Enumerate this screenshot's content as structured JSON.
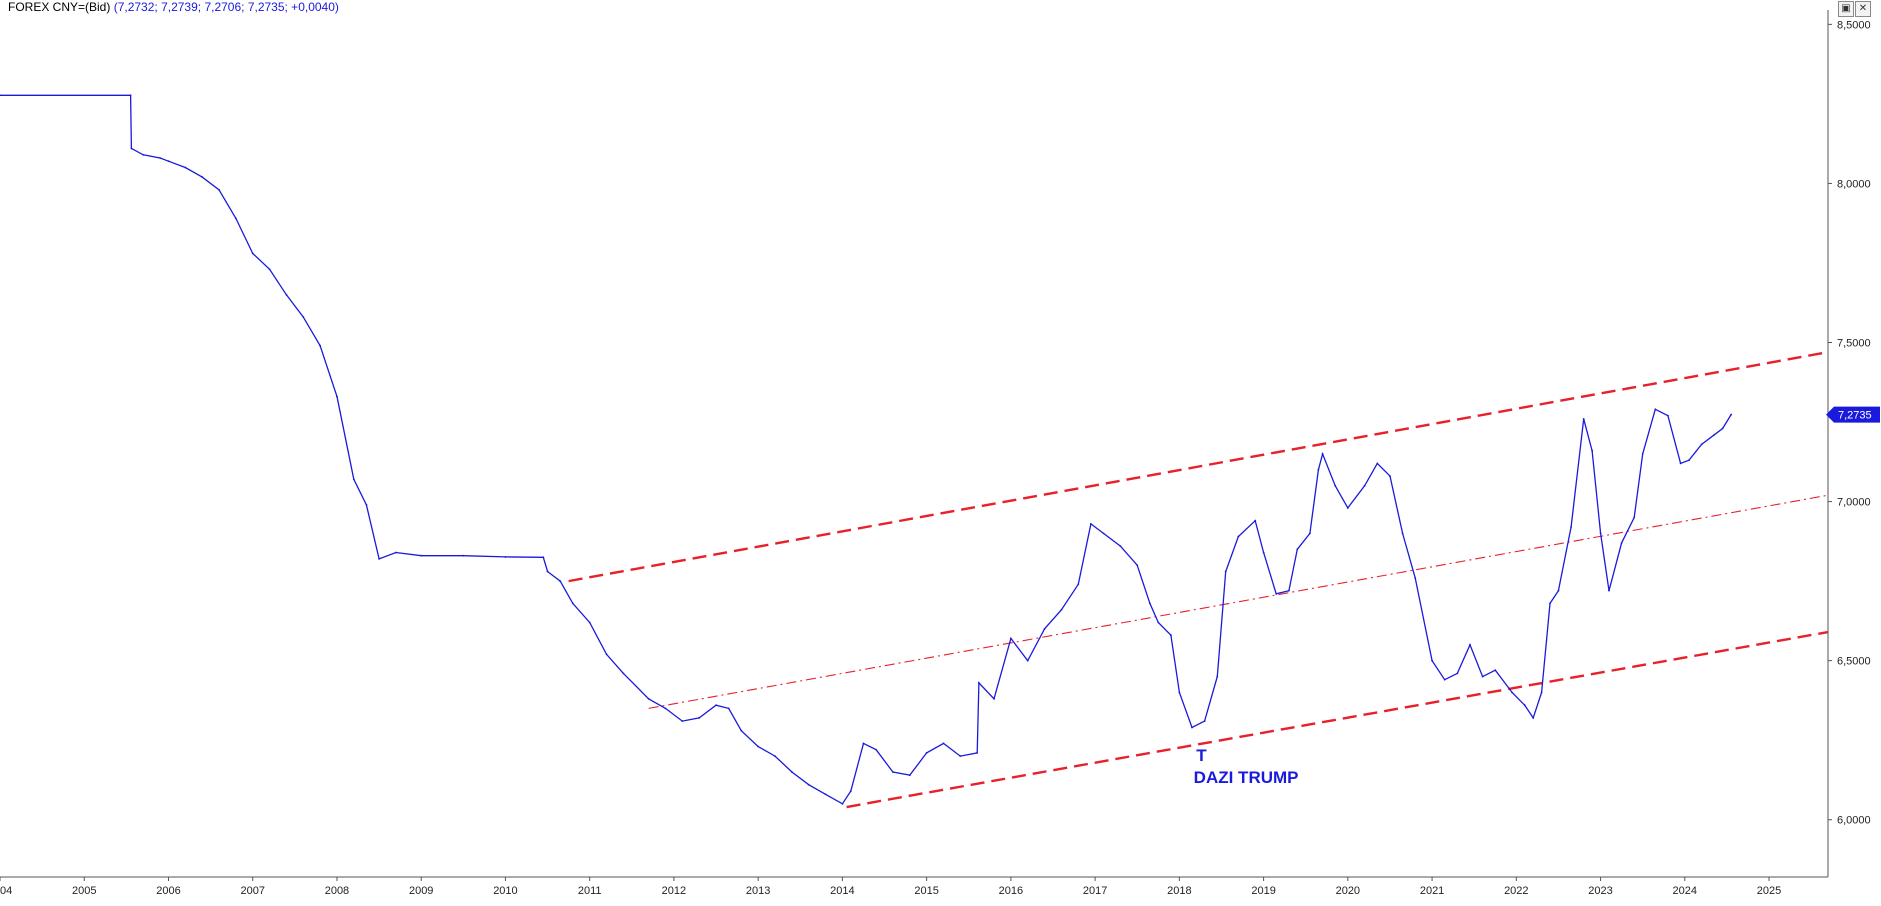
{
  "header": {
    "label": "FOREX CNY=(Bid)",
    "values": "(7,2732; 7,2739; 7,2706; 7,2735; +0,0040)"
  },
  "window_buttons": {
    "maximize_icon": "window-maximize-icon",
    "close_icon": "close-icon",
    "maximize_glyph": "▣",
    "close_glyph": "✕"
  },
  "chart_data": {
    "type": "line",
    "title": "FOREX CNY=(Bid)",
    "xlabel": "",
    "ylabel": "",
    "x_axis": {
      "range": [
        2004.0,
        2025.7
      ],
      "ticks": [
        "2004",
        "2005",
        "2006",
        "2007",
        "2008",
        "2009",
        "2010",
        "2011",
        "2012",
        "2013",
        "2014",
        "2015",
        "2016",
        "2017",
        "2018",
        "2019",
        "2020",
        "2021",
        "2022",
        "2023",
        "2024",
        "2025"
      ]
    },
    "y_axis": {
      "range": [
        5.82,
        8.52
      ],
      "ticks": [
        "6,0000",
        "6,5000",
        "7,0000",
        "7,5000",
        "8,0000",
        "8,5000"
      ],
      "tick_values": [
        6.0,
        6.5,
        7.0,
        7.5,
        8.0,
        8.5
      ],
      "position": "right"
    },
    "grid": false,
    "color_series": "#1a1adc",
    "color_trendline": "#e8202a",
    "last_price": {
      "label": "7,2735",
      "value": 7.2735,
      "color": "#1a1adc"
    },
    "series": [
      {
        "points": [
          [
            2004.0,
            8.277
          ],
          [
            2005.55,
            8.277
          ],
          [
            2005.56,
            8.11
          ],
          [
            2005.7,
            8.09
          ],
          [
            2005.9,
            8.08
          ],
          [
            2006.0,
            8.07
          ],
          [
            2006.2,
            8.05
          ],
          [
            2006.4,
            8.02
          ],
          [
            2006.6,
            7.98
          ],
          [
            2006.8,
            7.89
          ],
          [
            2007.0,
            7.78
          ],
          [
            2007.2,
            7.73
          ],
          [
            2007.4,
            7.65
          ],
          [
            2007.6,
            7.58
          ],
          [
            2007.8,
            7.49
          ],
          [
            2008.0,
            7.33
          ],
          [
            2008.2,
            7.07
          ],
          [
            2008.35,
            6.99
          ],
          [
            2008.5,
            6.82
          ],
          [
            2008.7,
            6.84
          ],
          [
            2009.0,
            6.83
          ],
          [
            2009.5,
            6.83
          ],
          [
            2010.0,
            6.826
          ],
          [
            2010.45,
            6.825
          ],
          [
            2010.5,
            6.78
          ],
          [
            2010.65,
            6.75
          ],
          [
            2010.8,
            6.68
          ],
          [
            2011.0,
            6.62
          ],
          [
            2011.2,
            6.52
          ],
          [
            2011.4,
            6.46
          ],
          [
            2011.7,
            6.38
          ],
          [
            2011.9,
            6.35
          ],
          [
            2012.1,
            6.31
          ],
          [
            2012.3,
            6.32
          ],
          [
            2012.5,
            6.36
          ],
          [
            2012.65,
            6.35
          ],
          [
            2012.8,
            6.28
          ],
          [
            2013.0,
            6.23
          ],
          [
            2013.2,
            6.2
          ],
          [
            2013.4,
            6.15
          ],
          [
            2013.6,
            6.11
          ],
          [
            2013.8,
            6.08
          ],
          [
            2014.0,
            6.05
          ],
          [
            2014.1,
            6.09
          ],
          [
            2014.25,
            6.24
          ],
          [
            2014.4,
            6.22
          ],
          [
            2014.6,
            6.15
          ],
          [
            2014.8,
            6.14
          ],
          [
            2015.0,
            6.21
          ],
          [
            2015.2,
            6.24
          ],
          [
            2015.4,
            6.2
          ],
          [
            2015.6,
            6.21
          ],
          [
            2015.62,
            6.43
          ],
          [
            2015.8,
            6.38
          ],
          [
            2016.0,
            6.57
          ],
          [
            2016.2,
            6.5
          ],
          [
            2016.4,
            6.6
          ],
          [
            2016.6,
            6.66
          ],
          [
            2016.8,
            6.74
          ],
          [
            2016.95,
            6.93
          ],
          [
            2017.1,
            6.9
          ],
          [
            2017.3,
            6.86
          ],
          [
            2017.5,
            6.8
          ],
          [
            2017.65,
            6.68
          ],
          [
            2017.75,
            6.62
          ],
          [
            2017.9,
            6.58
          ],
          [
            2018.0,
            6.4
          ],
          [
            2018.15,
            6.29
          ],
          [
            2018.3,
            6.31
          ],
          [
            2018.45,
            6.45
          ],
          [
            2018.55,
            6.78
          ],
          [
            2018.7,
            6.89
          ],
          [
            2018.9,
            6.94
          ],
          [
            2019.0,
            6.84
          ],
          [
            2019.15,
            6.71
          ],
          [
            2019.3,
            6.72
          ],
          [
            2019.4,
            6.85
          ],
          [
            2019.55,
            6.9
          ],
          [
            2019.65,
            7.1
          ],
          [
            2019.7,
            7.15
          ],
          [
            2019.85,
            7.05
          ],
          [
            2020.0,
            6.98
          ],
          [
            2020.2,
            7.05
          ],
          [
            2020.35,
            7.12
          ],
          [
            2020.5,
            7.08
          ],
          [
            2020.65,
            6.9
          ],
          [
            2020.8,
            6.76
          ],
          [
            2021.0,
            6.5
          ],
          [
            2021.15,
            6.44
          ],
          [
            2021.3,
            6.46
          ],
          [
            2021.45,
            6.55
          ],
          [
            2021.6,
            6.45
          ],
          [
            2021.75,
            6.47
          ],
          [
            2021.95,
            6.4
          ],
          [
            2022.1,
            6.36
          ],
          [
            2022.2,
            6.32
          ],
          [
            2022.3,
            6.4
          ],
          [
            2022.4,
            6.68
          ],
          [
            2022.5,
            6.72
          ],
          [
            2022.65,
            6.92
          ],
          [
            2022.8,
            7.26
          ],
          [
            2022.9,
            7.16
          ],
          [
            2023.0,
            6.9
          ],
          [
            2023.1,
            6.72
          ],
          [
            2023.25,
            6.87
          ],
          [
            2023.4,
            6.95
          ],
          [
            2023.5,
            7.15
          ],
          [
            2023.65,
            7.29
          ],
          [
            2023.8,
            7.27
          ],
          [
            2023.95,
            7.12
          ],
          [
            2024.05,
            7.13
          ],
          [
            2024.2,
            7.18
          ],
          [
            2024.35,
            7.21
          ],
          [
            2024.45,
            7.23
          ],
          [
            2024.55,
            7.2735
          ]
        ]
      }
    ],
    "trendlines": [
      {
        "style": "dashed",
        "from": [
          2010.75,
          6.75
        ],
        "to": [
          2025.7,
          7.47
        ]
      },
      {
        "style": "dashed",
        "from": [
          2014.05,
          6.04
        ],
        "to": [
          2025.7,
          6.59
        ]
      },
      {
        "style": "dash-dot",
        "from": [
          2011.7,
          6.35
        ],
        "to": [
          2025.7,
          7.02
        ]
      }
    ],
    "annotations": [
      {
        "text": "T",
        "x": 2018.2,
        "y": 6.185
      },
      {
        "text": "DAZI  TRUMP",
        "x": 2018.17,
        "y": 6.115
      }
    ]
  }
}
